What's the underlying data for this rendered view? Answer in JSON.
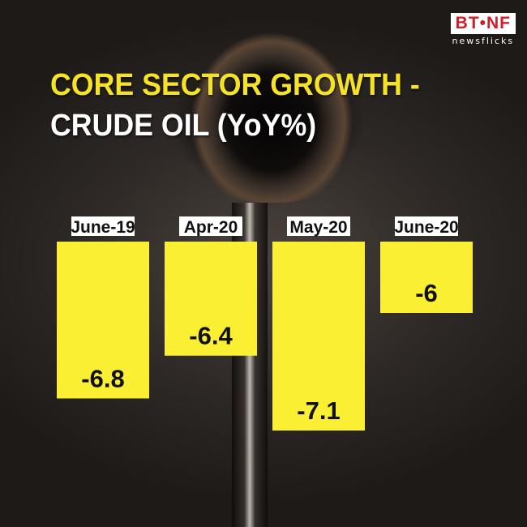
{
  "logo": {
    "main": "BT•NF",
    "sub": "newsflicks"
  },
  "title": {
    "line1": "CORE SECTOR GROWTH -",
    "line2": "CRUDE OIL (YoY%)"
  },
  "colors": {
    "bar": "#fbef34",
    "title_accent": "#f7e325",
    "logo_red": "#d21e2b"
  },
  "chart_data": {
    "type": "bar",
    "title": "CORE SECTOR GROWTH - CRUDE OIL (YoY%)",
    "categories": [
      "June-19",
      "Apr-20",
      "May-20",
      "June-20"
    ],
    "values": [
      -6.8,
      -6.4,
      -7.1,
      -6
    ],
    "value_labels": [
      "-6.8",
      "-6.4",
      "-7.1",
      "-6"
    ],
    "xlabel": "",
    "ylabel": "",
    "grid": false,
    "legend": "none"
  }
}
